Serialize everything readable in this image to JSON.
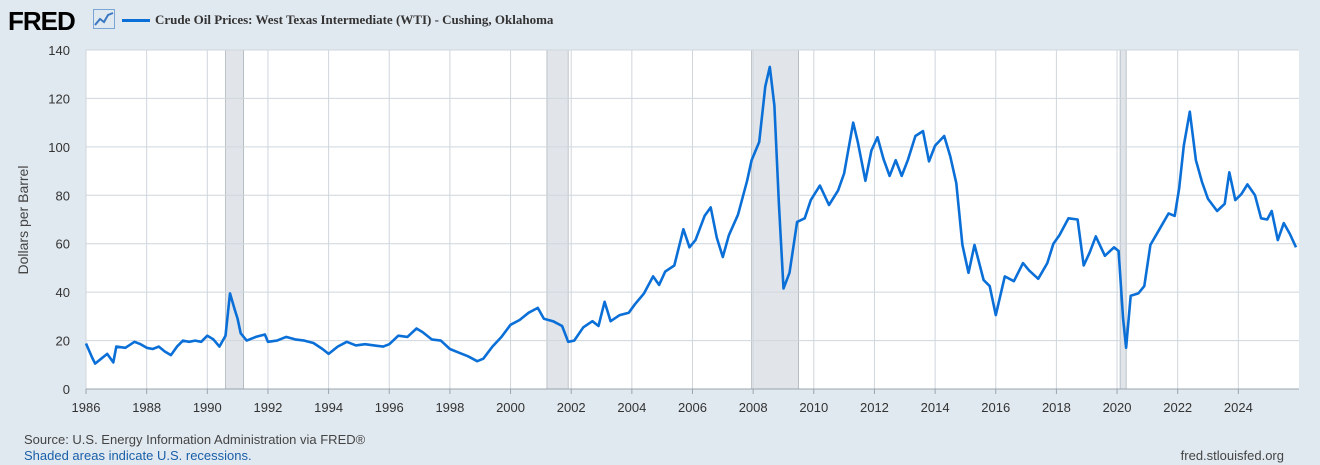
{
  "header": {
    "logo_text": "FRED",
    "logo_icon": "line-chart-icon",
    "series_title": "Crude Oil Prices: West Texas Intermediate (WTI) - Cushing, Oklahoma"
  },
  "footer": {
    "source": "Source: U.S. Energy Information Administration via FRED®",
    "recession_note": "Shaded areas indicate U.S. recessions.",
    "site": "fred.stlouisfed.org"
  },
  "colors": {
    "line": "#0b6fd8",
    "recession": "#e1e5ea",
    "background": "#e1e9f0",
    "plot": "#ffffff",
    "grid": "#cfd6dd"
  },
  "chart_data": {
    "type": "line",
    "ylabel": "Dollars per Barrel",
    "xlabel": "",
    "xlim": [
      1986,
      2026
    ],
    "ylim": [
      0,
      140
    ],
    "grid": true,
    "x_ticks": [
      "1986",
      "1988",
      "1990",
      "1992",
      "1994",
      "1996",
      "1998",
      "2000",
      "2002",
      "2004",
      "2006",
      "2008",
      "2010",
      "2012",
      "2014",
      "2016",
      "2018",
      "2020",
      "2022",
      "2024"
    ],
    "y_ticks": [
      0,
      20,
      40,
      60,
      80,
      100,
      120,
      140
    ],
    "recessions": [
      [
        1990.6,
        1991.2
      ],
      [
        2001.2,
        2001.9
      ],
      [
        2007.95,
        2009.5
      ],
      [
        2020.1,
        2020.3
      ]
    ],
    "series": [
      {
        "name": "Crude Oil Prices: West Texas Intermediate (WTI) - Cushing, Oklahoma",
        "points": [
          [
            1986.0,
            18.8
          ],
          [
            1986.2,
            13.0
          ],
          [
            1986.3,
            10.5
          ],
          [
            1986.5,
            12.5
          ],
          [
            1986.7,
            14.5
          ],
          [
            1986.9,
            11.0
          ],
          [
            1987.0,
            17.5
          ],
          [
            1987.3,
            17.0
          ],
          [
            1987.6,
            19.5
          ],
          [
            1987.8,
            18.5
          ],
          [
            1988.0,
            17.0
          ],
          [
            1988.2,
            16.5
          ],
          [
            1988.4,
            17.5
          ],
          [
            1988.6,
            15.5
          ],
          [
            1988.8,
            14.0
          ],
          [
            1989.0,
            17.5
          ],
          [
            1989.2,
            20.0
          ],
          [
            1989.4,
            19.5
          ],
          [
            1989.6,
            20.0
          ],
          [
            1989.8,
            19.5
          ],
          [
            1990.0,
            22.0
          ],
          [
            1990.2,
            20.5
          ],
          [
            1990.4,
            17.5
          ],
          [
            1990.6,
            22.0
          ],
          [
            1990.75,
            39.5
          ],
          [
            1990.9,
            33.0
          ],
          [
            1991.0,
            29.0
          ],
          [
            1991.1,
            23.0
          ],
          [
            1991.3,
            20.0
          ],
          [
            1991.6,
            21.5
          ],
          [
            1991.9,
            22.5
          ],
          [
            1992.0,
            19.5
          ],
          [
            1992.3,
            20.0
          ],
          [
            1992.6,
            21.5
          ],
          [
            1992.9,
            20.5
          ],
          [
            1993.2,
            20.0
          ],
          [
            1993.5,
            19.0
          ],
          [
            1993.8,
            16.5
          ],
          [
            1994.0,
            14.5
          ],
          [
            1994.3,
            17.5
          ],
          [
            1994.6,
            19.5
          ],
          [
            1994.9,
            18.0
          ],
          [
            1995.2,
            18.5
          ],
          [
            1995.5,
            18.0
          ],
          [
            1995.8,
            17.5
          ],
          [
            1996.0,
            18.5
          ],
          [
            1996.3,
            22.0
          ],
          [
            1996.6,
            21.5
          ],
          [
            1996.9,
            25.0
          ],
          [
            1997.1,
            23.5
          ],
          [
            1997.4,
            20.5
          ],
          [
            1997.7,
            20.0
          ],
          [
            1998.0,
            16.5
          ],
          [
            1998.3,
            15.0
          ],
          [
            1998.6,
            13.5
          ],
          [
            1998.9,
            11.5
          ],
          [
            1999.1,
            12.5
          ],
          [
            1999.4,
            17.5
          ],
          [
            1999.7,
            21.5
          ],
          [
            2000.0,
            26.5
          ],
          [
            2000.3,
            28.5
          ],
          [
            2000.6,
            31.5
          ],
          [
            2000.9,
            33.5
          ],
          [
            2001.1,
            29.0
          ],
          [
            2001.4,
            28.0
          ],
          [
            2001.7,
            26.0
          ],
          [
            2001.9,
            19.5
          ],
          [
            2002.1,
            20.0
          ],
          [
            2002.4,
            25.5
          ],
          [
            2002.7,
            28.0
          ],
          [
            2002.9,
            26.0
          ],
          [
            2003.1,
            36.0
          ],
          [
            2003.3,
            28.0
          ],
          [
            2003.6,
            30.5
          ],
          [
            2003.9,
            31.5
          ],
          [
            2004.1,
            35.0
          ],
          [
            2004.4,
            39.5
          ],
          [
            2004.7,
            46.5
          ],
          [
            2004.9,
            43.0
          ],
          [
            2005.1,
            48.5
          ],
          [
            2005.4,
            51.0
          ],
          [
            2005.7,
            66.0
          ],
          [
            2005.9,
            58.5
          ],
          [
            2006.1,
            61.5
          ],
          [
            2006.4,
            71.5
          ],
          [
            2006.6,
            75.0
          ],
          [
            2006.8,
            62.5
          ],
          [
            2007.0,
            54.5
          ],
          [
            2007.2,
            63.5
          ],
          [
            2007.5,
            72.0
          ],
          [
            2007.8,
            86.0
          ],
          [
            2007.95,
            94.5
          ],
          [
            2008.2,
            102.0
          ],
          [
            2008.4,
            125.0
          ],
          [
            2008.55,
            133.0
          ],
          [
            2008.7,
            117.0
          ],
          [
            2008.85,
            76.5
          ],
          [
            2009.0,
            41.5
          ],
          [
            2009.2,
            48.0
          ],
          [
            2009.45,
            69.0
          ],
          [
            2009.7,
            70.5
          ],
          [
            2009.9,
            78.0
          ],
          [
            2010.2,
            84.0
          ],
          [
            2010.5,
            76.0
          ],
          [
            2010.8,
            82.0
          ],
          [
            2011.0,
            89.0
          ],
          [
            2011.3,
            110.0
          ],
          [
            2011.45,
            102.0
          ],
          [
            2011.7,
            86.0
          ],
          [
            2011.9,
            98.5
          ],
          [
            2012.1,
            104.0
          ],
          [
            2012.3,
            95.0
          ],
          [
            2012.5,
            88.0
          ],
          [
            2012.7,
            94.5
          ],
          [
            2012.9,
            88.0
          ],
          [
            2013.1,
            94.5
          ],
          [
            2013.35,
            104.5
          ],
          [
            2013.6,
            106.5
          ],
          [
            2013.8,
            94.0
          ],
          [
            2014.0,
            100.5
          ],
          [
            2014.3,
            104.5
          ],
          [
            2014.5,
            96.0
          ],
          [
            2014.7,
            85.0
          ],
          [
            2014.9,
            59.5
          ],
          [
            2015.1,
            48.0
          ],
          [
            2015.3,
            59.5
          ],
          [
            2015.6,
            45.0
          ],
          [
            2015.8,
            42.5
          ],
          [
            2016.0,
            30.5
          ],
          [
            2016.3,
            46.5
          ],
          [
            2016.6,
            44.5
          ],
          [
            2016.9,
            52.0
          ],
          [
            2017.1,
            49.0
          ],
          [
            2017.4,
            45.5
          ],
          [
            2017.7,
            52.0
          ],
          [
            2017.9,
            60.0
          ],
          [
            2018.1,
            63.5
          ],
          [
            2018.4,
            70.5
          ],
          [
            2018.7,
            70.0
          ],
          [
            2018.9,
            51.0
          ],
          [
            2019.1,
            56.5
          ],
          [
            2019.3,
            63.0
          ],
          [
            2019.6,
            55.0
          ],
          [
            2019.9,
            58.5
          ],
          [
            2020.05,
            57.0
          ],
          [
            2020.2,
            29.0
          ],
          [
            2020.3,
            17.0
          ],
          [
            2020.45,
            38.5
          ],
          [
            2020.7,
            39.5
          ],
          [
            2020.9,
            42.5
          ],
          [
            2021.1,
            59.5
          ],
          [
            2021.4,
            66.0
          ],
          [
            2021.7,
            72.5
          ],
          [
            2021.9,
            71.5
          ],
          [
            2022.05,
            83.0
          ],
          [
            2022.2,
            100.5
          ],
          [
            2022.4,
            114.5
          ],
          [
            2022.6,
            94.5
          ],
          [
            2022.8,
            85.5
          ],
          [
            2023.0,
            78.5
          ],
          [
            2023.3,
            73.5
          ],
          [
            2023.55,
            76.5
          ],
          [
            2023.7,
            89.5
          ],
          [
            2023.9,
            78.0
          ],
          [
            2024.1,
            80.5
          ],
          [
            2024.3,
            84.5
          ],
          [
            2024.55,
            80.0
          ],
          [
            2024.75,
            70.5
          ],
          [
            2024.95,
            70.0
          ],
          [
            2025.1,
            73.5
          ],
          [
            2025.3,
            61.5
          ],
          [
            2025.5,
            68.5
          ],
          [
            2025.7,
            64.0
          ],
          [
            2025.9,
            58.5
          ]
        ]
      }
    ]
  }
}
